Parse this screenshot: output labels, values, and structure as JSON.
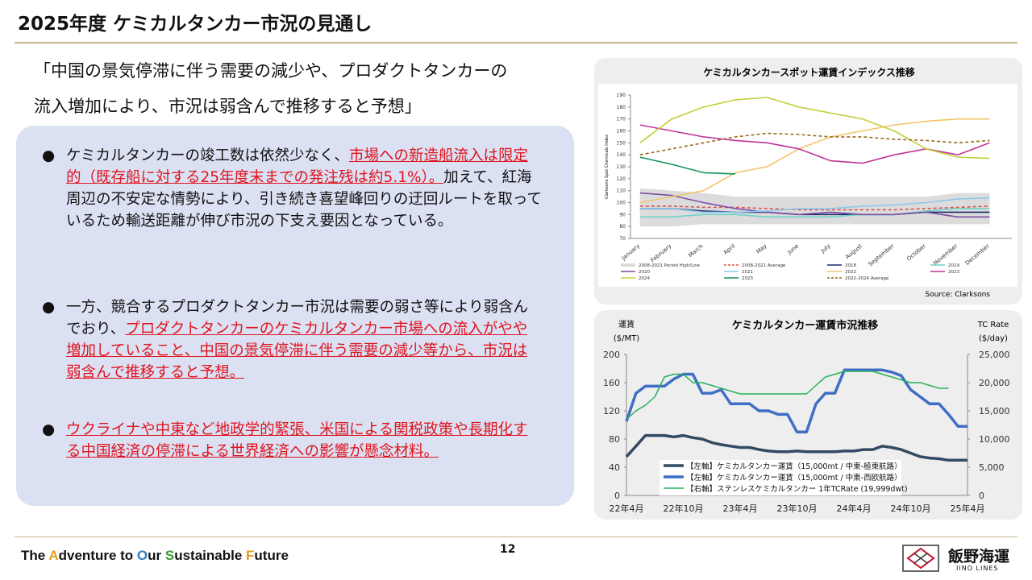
{
  "header": {
    "title": "2025年度 ケミカルタンカー市況の見通し"
  },
  "quote": [
    "「中国の景気停滞に伴う需要の減少や、プロダクトタンカーの",
    "流入増加により、市況は弱含んで推移すると予想」"
  ],
  "bullets": [
    {
      "segments": [
        {
          "text": "ケミカルタンカーの竣工数は依然少なく、"
        },
        {
          "text": "市場への新造船流入は限定的（既存船に対する25年度末までの発注残は約5.1%）。",
          "highlight": true
        },
        {
          "text": "加えて、紅海周辺の不安定な情勢により、引き続き喜望峰回りの迂回ルートを取っているため輸送距離が伸び市況の下支え要因となっている。"
        }
      ]
    },
    {
      "segments": [
        {
          "text": "一方、競合するプロダクトタンカー市況は需要の弱さ等により弱含んでおり、"
        },
        {
          "text": "プロダクトタンカーのケミカルタンカー市場への流入がやや増加していること、中国の景気停滞に伴う需要の減少等から、市況は弱含んで推移すると予想。",
          "highlight": true
        }
      ]
    },
    {
      "segments": [
        {
          "text": "ウクライナや中東など地政学的緊張、米国による関税政策や長期化する中国経済の停滞による世界経済への影響が懸念材料。",
          "highlight": true
        }
      ]
    }
  ],
  "footer": {
    "slogan": [
      {
        "text": "The "
      },
      {
        "text": "A",
        "color": "#e39b1c"
      },
      {
        "text": "dventure to "
      },
      {
        "text": "O",
        "color": "#2f7fc3"
      },
      {
        "text": "ur "
      },
      {
        "text": "S",
        "color": "#3a9b3a"
      },
      {
        "text": "ustainable "
      },
      {
        "text": "F",
        "color": "#e39b1c"
      },
      {
        "text": "uture"
      }
    ],
    "page": "12",
    "company": "飯野海運",
    "company_en": "IINO LINES"
  },
  "chart_data": [
    {
      "type": "line",
      "title": "ケミカルタンカースポット運賃インデックス推移",
      "y_label": "Clarksons Spot Chemicals Index",
      "source": "Source: Clarksons",
      "categories": [
        "January",
        "February",
        "March",
        "April",
        "May",
        "June",
        "July",
        "August",
        "September",
        "October",
        "November",
        "December"
      ],
      "ylim": [
        70,
        190
      ],
      "yticks": [
        70,
        80,
        90,
        100,
        110,
        120,
        130,
        140,
        150,
        160,
        170,
        180,
        190
      ],
      "grid": false,
      "band": {
        "name": "2008-2021 Period High/Low",
        "color": "#dcdcdc",
        "high": [
          112,
          110,
          108,
          105,
          105,
          105,
          105,
          105,
          105,
          105,
          108,
          108
        ],
        "low": [
          80,
          80,
          82,
          82,
          82,
          82,
          82,
          82,
          82,
          82,
          82,
          82
        ]
      },
      "series": [
        {
          "name": "2008-2021 Average",
          "color": "#d9534f",
          "dash": true,
          "values": [
            97,
            97,
            96,
            96,
            95,
            94,
            94,
            94,
            94,
            95,
            96,
            97
          ]
        },
        {
          "name": "2018",
          "color": "#1f2a6b",
          "values": [
            95,
            95,
            93,
            92,
            92,
            90,
            90,
            90,
            90,
            92,
            92,
            92
          ]
        },
        {
          "name": "2019",
          "color": "#6fd3c8",
          "values": [
            88,
            88,
            90,
            90,
            88,
            88,
            88,
            90,
            90,
            93,
            95,
            95
          ]
        },
        {
          "name": "2020",
          "color": "#7b4fa5",
          "values": [
            108,
            106,
            100,
            95,
            92,
            90,
            92,
            90,
            90,
            92,
            88,
            88
          ]
        },
        {
          "name": "2021",
          "color": "#8ec9ec",
          "values": [
            95,
            95,
            92,
            92,
            93,
            95,
            95,
            97,
            98,
            100,
            103,
            104
          ]
        },
        {
          "name": "2022",
          "color": "#f3c46a",
          "values": [
            100,
            105,
            110,
            125,
            130,
            145,
            155,
            160,
            165,
            168,
            170,
            170
          ]
        },
        {
          "name": "2023",
          "color": "#c0349a",
          "values": [
            165,
            160,
            155,
            152,
            150,
            145,
            135,
            133,
            140,
            145,
            140,
            150
          ]
        },
        {
          "name": "2024",
          "color": "#c5cf3a",
          "values": [
            150,
            170,
            180,
            186,
            188,
            180,
            175,
            170,
            160,
            145,
            138,
            137
          ]
        },
        {
          "name": "2023",
          "color": "#16925a",
          "values": [
            138,
            132,
            125,
            124,
            null,
            null,
            null,
            null,
            null,
            null,
            null,
            null
          ]
        },
        {
          "name": "2022-2024 Average",
          "color": "#9a6a1e",
          "dash": true,
          "values": [
            140,
            145,
            150,
            155,
            158,
            157,
            155,
            155,
            153,
            152,
            150,
            152
          ]
        }
      ]
    },
    {
      "type": "line",
      "title": "ケミカルタンカー運賃市況推移",
      "y_label": [
        "運賃",
        "($/MT)"
      ],
      "y2_label": [
        "TC Rate",
        "($/day)"
      ],
      "categories": [
        "22年4月",
        null,
        null,
        null,
        null,
        null,
        "22年10月",
        null,
        null,
        null,
        null,
        null,
        "23年4月",
        null,
        null,
        null,
        null,
        null,
        "23年10月",
        null,
        null,
        null,
        null,
        null,
        "24年4月",
        null,
        null,
        null,
        null,
        null,
        "24年10月",
        null,
        null,
        null,
        null,
        null,
        "25年4月"
      ],
      "ylim": [
        0,
        200
      ],
      "yticks": [
        0,
        40,
        80,
        120,
        160,
        200
      ],
      "y2lim": [
        0,
        25000
      ],
      "y2ticks": [
        0,
        {
          "value": 5000,
          "label": "5,000"
        },
        {
          "value": 10000,
          "label": "10,000"
        },
        {
          "value": 15000,
          "label": "15,000"
        },
        {
          "value": 20000,
          "label": "20,000"
        },
        {
          "value": 25000,
          "label": "25,000"
        }
      ],
      "series": [
        {
          "name": "【左軸】ケミカルタンカー運賃（15,000mt / 中東-極東航路）",
          "color": "#334a63",
          "width": 3.5,
          "values": [
            55,
            70,
            85,
            85,
            85,
            83,
            85,
            82,
            80,
            75,
            72,
            70,
            68,
            68,
            65,
            63,
            62,
            62,
            63,
            62,
            62,
            62,
            62,
            63,
            63,
            65,
            65,
            70,
            68,
            65,
            60,
            55,
            53,
            52,
            50,
            50,
            50
          ]
        },
        {
          "name": "【左軸】ケミカルタンカー運賃（15,000mt / 中東-西欧航路）",
          "color": "#3f6fc4",
          "width": 3.5,
          "values": [
            105,
            145,
            155,
            155,
            155,
            165,
            172,
            172,
            145,
            145,
            150,
            130,
            130,
            130,
            120,
            120,
            115,
            115,
            90,
            90,
            130,
            145,
            145,
            178,
            178,
            178,
            178,
            178,
            175,
            170,
            150,
            140,
            130,
            130,
            115,
            98,
            98
          ]
        },
        {
          "name": "【右軸】ステンレスケミカルタンカー 1年TCRate (19,999dwt)",
          "color": "#27b25a",
          "width": 1.5,
          "axis": "y2",
          "values": [
            13500,
            15000,
            16000,
            17500,
            21000,
            21500,
            21500,
            20000,
            20000,
            19500,
            19000,
            18500,
            18000,
            18000,
            18000,
            18000,
            18000,
            18000,
            18000,
            18000,
            19500,
            21000,
            21500,
            22000,
            22000,
            22000,
            22000,
            21500,
            21000,
            20500,
            20000,
            20000,
            19500,
            19000,
            19000,
            null,
            null
          ]
        }
      ]
    }
  ]
}
